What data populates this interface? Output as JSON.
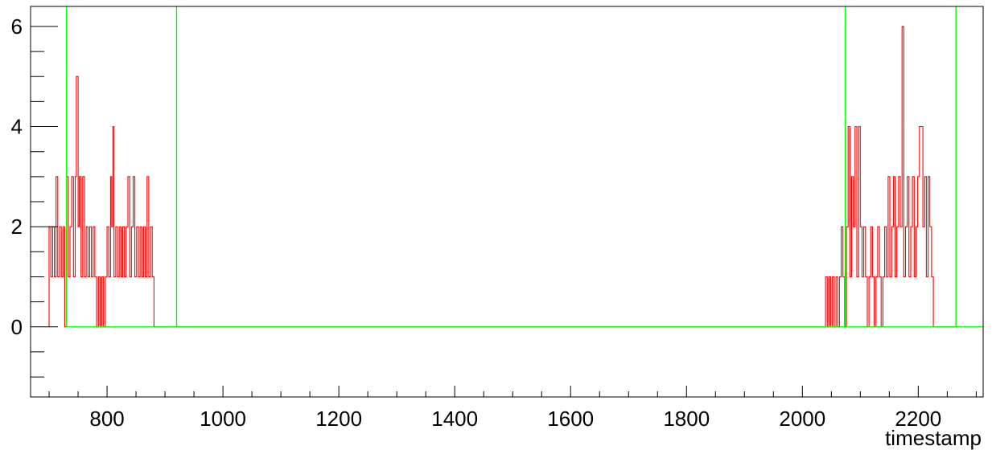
{
  "chart_data": {
    "type": "line",
    "title": "",
    "xlabel": "timestamp",
    "ylabel": "",
    "xlim": [
      668,
      2312
    ],
    "ylim": [
      -1.4,
      6.4
    ],
    "x_ticks": [
      800,
      1000,
      1200,
      1400,
      1600,
      1800,
      2000,
      2200
    ],
    "y_ticks": [
      0,
      2,
      4,
      6
    ],
    "x_minor_step": 50,
    "y_minor_step": 0.5,
    "grid": false,
    "series": [
      {
        "color": "#ff0000",
        "style": "step-histogram",
        "bins": [
          [
            700,
            2
          ],
          [
            703,
            1
          ],
          [
            706,
            2
          ],
          [
            709,
            1
          ],
          [
            712,
            3
          ],
          [
            715,
            1
          ],
          [
            718,
            2
          ],
          [
            721,
            1
          ],
          [
            724,
            2
          ],
          [
            727,
            0
          ],
          [
            730,
            3
          ],
          [
            733,
            1
          ],
          [
            736,
            2
          ],
          [
            739,
            3
          ],
          [
            742,
            1
          ],
          [
            745,
            3
          ],
          [
            747,
            5
          ],
          [
            750,
            2
          ],
          [
            752,
            3
          ],
          [
            755,
            1
          ],
          [
            758,
            3
          ],
          [
            761,
            1
          ],
          [
            764,
            2
          ],
          [
            767,
            1
          ],
          [
            770,
            2
          ],
          [
            773,
            1
          ],
          [
            776,
            2
          ],
          [
            779,
            1
          ],
          [
            782,
            0
          ],
          [
            785,
            1
          ],
          [
            788,
            0
          ],
          [
            791,
            1
          ],
          [
            794,
            0
          ],
          [
            797,
            1
          ],
          [
            800,
            2
          ],
          [
            803,
            1
          ],
          [
            806,
            3
          ],
          [
            808,
            2
          ],
          [
            810,
            4
          ],
          [
            812,
            1
          ],
          [
            815,
            2
          ],
          [
            818,
            1
          ],
          [
            821,
            2
          ],
          [
            824,
            1
          ],
          [
            827,
            2
          ],
          [
            830,
            1
          ],
          [
            833,
            2
          ],
          [
            836,
            3
          ],
          [
            839,
            1
          ],
          [
            842,
            2
          ],
          [
            845,
            3
          ],
          [
            848,
            1
          ],
          [
            851,
            2
          ],
          [
            854,
            1
          ],
          [
            857,
            2
          ],
          [
            860,
            1
          ],
          [
            863,
            2
          ],
          [
            866,
            1
          ],
          [
            869,
            3
          ],
          [
            872,
            1
          ],
          [
            875,
            2
          ],
          [
            878,
            1
          ],
          [
            881,
            0
          ],
          [
            884,
            0
          ],
          [
            920,
            0
          ],
          [
            2040,
            1
          ],
          [
            2043,
            0
          ],
          [
            2046,
            1
          ],
          [
            2049,
            0
          ],
          [
            2052,
            1
          ],
          [
            2055,
            0
          ],
          [
            2058,
            1
          ],
          [
            2061,
            0
          ],
          [
            2064,
            1
          ],
          [
            2067,
            2
          ],
          [
            2070,
            1
          ],
          [
            2073,
            0
          ],
          [
            2076,
            2
          ],
          [
            2079,
            4
          ],
          [
            2082,
            1
          ],
          [
            2085,
            3
          ],
          [
            2088,
            2
          ],
          [
            2091,
            4
          ],
          [
            2094,
            1
          ],
          [
            2097,
            4
          ],
          [
            2100,
            2
          ],
          [
            2103,
            1
          ],
          [
            2106,
            2
          ],
          [
            2109,
            1
          ],
          [
            2112,
            0
          ],
          [
            2115,
            1
          ],
          [
            2118,
            2
          ],
          [
            2121,
            1
          ],
          [
            2124,
            0
          ],
          [
            2127,
            1
          ],
          [
            2130,
            2
          ],
          [
            2133,
            1
          ],
          [
            2136,
            0
          ],
          [
            2139,
            1
          ],
          [
            2142,
            2
          ],
          [
            2145,
            1
          ],
          [
            2148,
            3
          ],
          [
            2151,
            1
          ],
          [
            2154,
            2
          ],
          [
            2157,
            3
          ],
          [
            2160,
            1
          ],
          [
            2163,
            2
          ],
          [
            2166,
            3
          ],
          [
            2169,
            2
          ],
          [
            2172,
            6
          ],
          [
            2175,
            1
          ],
          [
            2178,
            2
          ],
          [
            2181,
            3
          ],
          [
            2184,
            1
          ],
          [
            2187,
            2
          ],
          [
            2190,
            3
          ],
          [
            2193,
            1
          ],
          [
            2196,
            2
          ],
          [
            2199,
            3
          ],
          [
            2202,
            4
          ],
          [
            2205,
            4
          ],
          [
            2208,
            2
          ],
          [
            2211,
            3
          ],
          [
            2214,
            1
          ],
          [
            2217,
            3
          ],
          [
            2220,
            2
          ],
          [
            2223,
            1
          ],
          [
            2226,
            0
          ],
          [
            2230,
            0
          ],
          [
            2265,
            0
          ]
        ]
      },
      {
        "color": "#00ff00",
        "style": "boundary-lines",
        "baseline": 0,
        "x_markers": [
          730,
          920,
          2074,
          2265
        ]
      }
    ]
  }
}
